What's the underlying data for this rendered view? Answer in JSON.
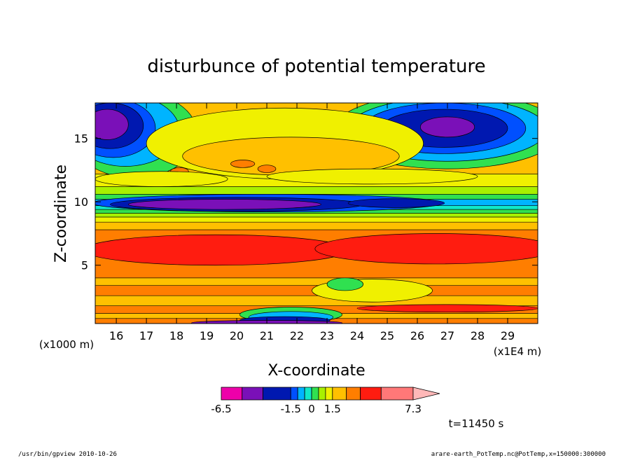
{
  "chart_data": {
    "type": "heatmap",
    "title": "disturbunce of potential temperature",
    "xlabel": "X-coordinate",
    "ylabel": "Z-coordinate",
    "x_unit": "(x1E4 m)",
    "y_unit": "(x1000 m)",
    "xlim": [
      15.3,
      30.0
    ],
    "ylim": [
      0.4,
      17.8
    ],
    "x_ticks": [
      "16",
      "17",
      "18",
      "19",
      "20",
      "21",
      "22",
      "23",
      "24",
      "25",
      "26",
      "27",
      "28",
      "29"
    ],
    "y_ticks": [
      "5",
      "10",
      "15"
    ],
    "colorbar": {
      "levels": [
        -6.5,
        -5.0,
        -3.5,
        -1.5,
        -1.0,
        -0.5,
        0,
        0.5,
        1.0,
        1.5,
        2.5,
        3.5,
        5.0,
        7.3
      ],
      "colors": [
        "#ee00aa",
        "#7a10b8",
        "#0018b0",
        "#0050ff",
        "#00b4ff",
        "#10e8c8",
        "#30e050",
        "#a8f000",
        "#f0f000",
        "#ffc000",
        "#ff7e00",
        "#ff1c10",
        "#ff7878",
        "#ffb8b8"
      ],
      "labels": [
        "-6.5",
        "-1.5",
        "0",
        "1.5",
        "7.3"
      ]
    },
    "bands": [
      {
        "z": [
          0.4,
          0.8
        ],
        "color": "#ff7e00"
      },
      {
        "z": [
          0.8,
          1.2
        ],
        "color": "#ffc000"
      },
      {
        "z": [
          1.2,
          1.8
        ],
        "color": "#ff7e00"
      },
      {
        "z": [
          1.8,
          2.6
        ],
        "color": "#ffc000"
      },
      {
        "z": [
          2.6,
          3.4
        ],
        "color": "#ff7e00"
      },
      {
        "z": [
          3.4,
          4.0
        ],
        "color": "#ffc000"
      },
      {
        "z": [
          4.0,
          7.8
        ],
        "color": "#ff7e00"
      },
      {
        "z": [
          7.8,
          8.4
        ],
        "color": "#ffc000"
      },
      {
        "z": [
          8.4,
          8.8
        ],
        "color": "#f0f000"
      },
      {
        "z": [
          8.8,
          9.1
        ],
        "color": "#a8f000"
      },
      {
        "z": [
          9.1,
          9.4
        ],
        "color": "#30e050"
      },
      {
        "z": [
          9.4,
          9.7
        ],
        "color": "#10e8c8"
      },
      {
        "z": [
          9.7,
          10.2
        ],
        "color": "#00b4ff"
      },
      {
        "z": [
          10.2,
          10.6
        ],
        "color": "#30e050"
      },
      {
        "z": [
          10.6,
          11.2
        ],
        "color": "#a8f000"
      },
      {
        "z": [
          11.2,
          12.2
        ],
        "color": "#f0f000"
      },
      {
        "z": [
          12.2,
          17.8
        ],
        "color": "#ffc000"
      }
    ],
    "features": [
      {
        "shape": "ellipse",
        "cx": 16.6,
        "cz": 15.3,
        "rx": 2.1,
        "rz": 3.4,
        "color": "#30e050"
      },
      {
        "shape": "ellipse",
        "cx": 16.3,
        "cz": 15.6,
        "rx": 1.8,
        "rz": 2.8,
        "color": "#00b4ff"
      },
      {
        "shape": "ellipse",
        "cx": 15.9,
        "cz": 15.8,
        "rx": 1.4,
        "rz": 2.3,
        "color": "#0050ff"
      },
      {
        "shape": "ellipse",
        "cx": 15.8,
        "cz": 16.0,
        "rx": 1.1,
        "rz": 1.8,
        "color": "#0018b0"
      },
      {
        "shape": "ellipse",
        "cx": 15.7,
        "cz": 16.1,
        "rx": 0.7,
        "rz": 1.2,
        "color": "#7a10b8"
      },
      {
        "shape": "ellipse",
        "cx": 27.0,
        "cz": 15.6,
        "rx": 3.8,
        "rz": 3.0,
        "color": "#30e050"
      },
      {
        "shape": "ellipse",
        "cx": 27.0,
        "cz": 15.7,
        "rx": 3.3,
        "rz": 2.5,
        "color": "#00b4ff"
      },
      {
        "shape": "ellipse",
        "cx": 26.9,
        "cz": 15.8,
        "rx": 2.7,
        "rz": 2.0,
        "color": "#0050ff"
      },
      {
        "shape": "ellipse",
        "cx": 26.9,
        "cz": 15.8,
        "rx": 2.1,
        "rz": 1.5,
        "color": "#0018b0"
      },
      {
        "shape": "ellipse",
        "cx": 27.0,
        "cz": 15.9,
        "rx": 0.9,
        "rz": 0.8,
        "color": "#7a10b8"
      },
      {
        "shape": "ellipse",
        "cx": 21.6,
        "cz": 14.6,
        "rx": 4.6,
        "rz": 2.8,
        "color": "#f0f000"
      },
      {
        "shape": "ellipse",
        "cx": 21.8,
        "cz": 13.6,
        "rx": 3.6,
        "rz": 1.5,
        "color": "#ffc000"
      },
      {
        "shape": "ellipse",
        "cx": 20.2,
        "cz": 13.0,
        "rx": 0.4,
        "rz": 0.3,
        "color": "#ff7e00"
      },
      {
        "shape": "ellipse",
        "cx": 21.0,
        "cz": 12.6,
        "rx": 0.3,
        "rz": 0.3,
        "color": "#ff7e00"
      },
      {
        "shape": "ellipse",
        "cx": 18.1,
        "cz": 12.4,
        "rx": 0.3,
        "rz": 0.3,
        "color": "#ff7e00"
      },
      {
        "shape": "ellipse",
        "cx": 24.5,
        "cz": 12.0,
        "rx": 3.5,
        "rz": 0.6,
        "color": "#f0f000"
      },
      {
        "shape": "ellipse",
        "cx": 17.5,
        "cz": 11.8,
        "rx": 2.2,
        "rz": 0.6,
        "color": "#f0f000"
      },
      {
        "shape": "ellipse",
        "cx": 21.0,
        "cz": 9.9,
        "rx": 5.8,
        "rz": 0.7,
        "color": "#0050ff"
      },
      {
        "shape": "ellipse",
        "cx": 20.0,
        "cz": 9.8,
        "rx": 4.2,
        "rz": 0.55,
        "color": "#0018b0"
      },
      {
        "shape": "ellipse",
        "cx": 19.6,
        "cz": 9.8,
        "rx": 3.2,
        "rz": 0.4,
        "color": "#7a10b8"
      },
      {
        "shape": "ellipse",
        "cx": 25.3,
        "cz": 9.9,
        "rx": 1.6,
        "rz": 0.35,
        "color": "#0018b0"
      },
      {
        "shape": "ellipse",
        "cx": 19.3,
        "cz": 6.2,
        "rx": 4.4,
        "rz": 1.2,
        "color": "#ff1c10"
      },
      {
        "shape": "ellipse",
        "cx": 26.6,
        "cz": 6.3,
        "rx": 4.0,
        "rz": 1.2,
        "color": "#ff1c10"
      },
      {
        "shape": "ellipse",
        "cx": 24.5,
        "cz": 3.0,
        "rx": 2.0,
        "rz": 0.9,
        "color": "#f0f000"
      },
      {
        "shape": "ellipse",
        "cx": 23.6,
        "cz": 3.5,
        "rx": 0.6,
        "rz": 0.5,
        "color": "#30e050"
      },
      {
        "shape": "ellipse",
        "cx": 21.8,
        "cz": 1.1,
        "rx": 1.7,
        "rz": 0.6,
        "color": "#30e050"
      },
      {
        "shape": "ellipse",
        "cx": 21.8,
        "cz": 0.9,
        "rx": 1.4,
        "rz": 0.45,
        "color": "#00b4ff"
      },
      {
        "shape": "ellipse",
        "cx": 21.6,
        "cz": 0.65,
        "rx": 1.5,
        "rz": 0.3,
        "color": "#0018b0"
      },
      {
        "shape": "ellipse",
        "cx": 21.0,
        "cz": 0.45,
        "rx": 2.5,
        "rz": 0.2,
        "color": "#7a10b8"
      },
      {
        "shape": "ellipse",
        "cx": 27.0,
        "cz": 1.6,
        "rx": 3.0,
        "rz": 0.3,
        "color": "#ff1c10"
      }
    ]
  },
  "time_label": "t=11450 s",
  "footer_left": "/usr/bin/gpview   2010-10-26",
  "footer_right": "arare-earth_PotTemp.nc@PotTemp,x=150000:300000"
}
